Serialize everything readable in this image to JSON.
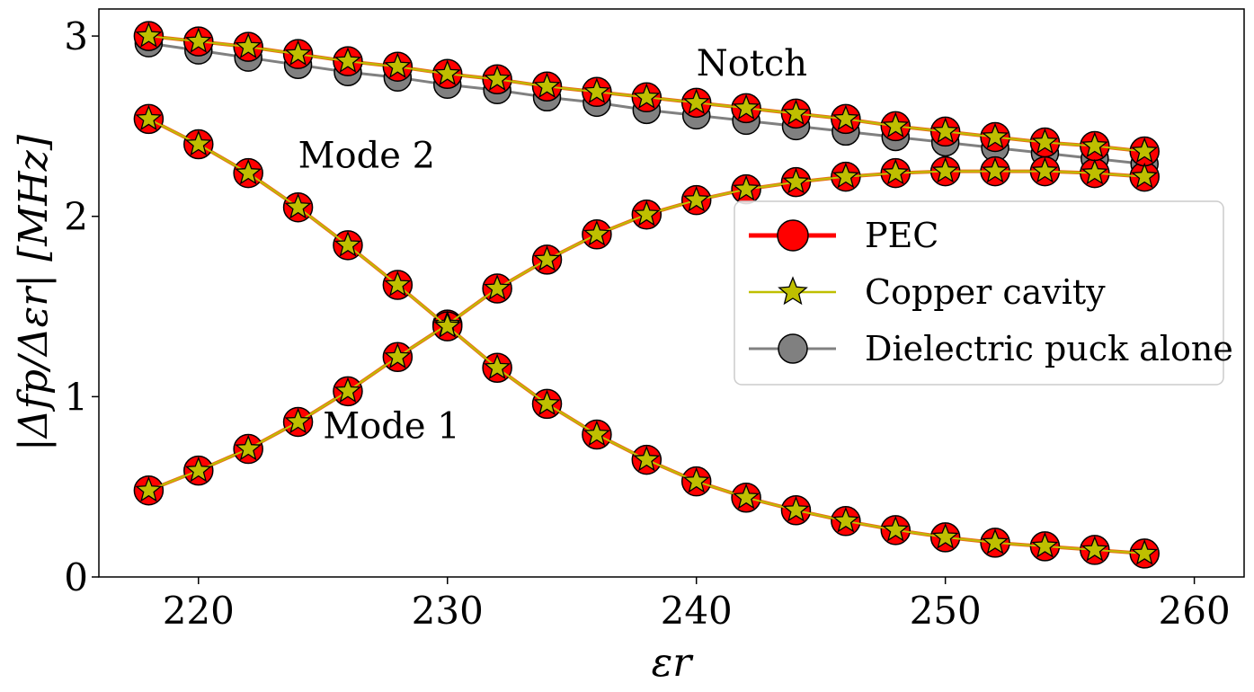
{
  "chart_data": {
    "type": "line",
    "title": "",
    "xlabel": "εr",
    "ylabel": "|Δfp/Δεr| [MHz]",
    "xlim": [
      216,
      262
    ],
    "ylim": [
      0,
      3.15
    ],
    "xticks": [
      220,
      230,
      240,
      250,
      260
    ],
    "yticks": [
      0,
      1,
      2,
      3
    ],
    "x": [
      218,
      220,
      222,
      224,
      226,
      228,
      230,
      232,
      234,
      236,
      238,
      240,
      242,
      244,
      246,
      248,
      250,
      252,
      254,
      256,
      258
    ],
    "series": [
      {
        "name": "PEC",
        "group": "Mode 1",
        "values": [
          0.48,
          0.59,
          0.71,
          0.86,
          1.03,
          1.22,
          1.4,
          1.6,
          1.76,
          1.9,
          2.01,
          2.09,
          2.15,
          2.19,
          2.22,
          2.24,
          2.25,
          2.25,
          2.25,
          2.24,
          2.22
        ]
      },
      {
        "name": "PEC",
        "group": "Mode 2",
        "values": [
          2.54,
          2.4,
          2.24,
          2.05,
          1.84,
          1.62,
          1.39,
          1.16,
          0.96,
          0.79,
          0.65,
          0.53,
          0.44,
          0.37,
          0.31,
          0.26,
          0.22,
          0.19,
          0.17,
          0.15,
          0.13
        ]
      },
      {
        "name": "PEC",
        "group": "Notch",
        "values": [
          3.0,
          2.97,
          2.94,
          2.9,
          2.86,
          2.83,
          2.79,
          2.76,
          2.72,
          2.69,
          2.66,
          2.63,
          2.6,
          2.57,
          2.54,
          2.5,
          2.47,
          2.44,
          2.41,
          2.39,
          2.36
        ]
      },
      {
        "name": "Copper cavity",
        "group": "Mode 1",
        "values": [
          0.48,
          0.59,
          0.71,
          0.86,
          1.03,
          1.22,
          1.4,
          1.6,
          1.76,
          1.9,
          2.01,
          2.09,
          2.15,
          2.19,
          2.22,
          2.24,
          2.25,
          2.25,
          2.25,
          2.24,
          2.22
        ]
      },
      {
        "name": "Copper cavity",
        "group": "Mode 2",
        "values": [
          2.54,
          2.4,
          2.24,
          2.05,
          1.84,
          1.62,
          1.39,
          1.16,
          0.96,
          0.79,
          0.65,
          0.53,
          0.44,
          0.37,
          0.31,
          0.26,
          0.22,
          0.19,
          0.17,
          0.15,
          0.13
        ]
      },
      {
        "name": "Copper cavity",
        "group": "Notch",
        "values": [
          3.0,
          2.97,
          2.94,
          2.9,
          2.86,
          2.83,
          2.79,
          2.76,
          2.72,
          2.69,
          2.66,
          2.63,
          2.6,
          2.57,
          2.54,
          2.5,
          2.47,
          2.44,
          2.41,
          2.39,
          2.36
        ]
      },
      {
        "name": "Dielectric puck alone",
        "group": "Notch",
        "values": [
          2.96,
          2.92,
          2.88,
          2.84,
          2.8,
          2.77,
          2.73,
          2.7,
          2.66,
          2.63,
          2.59,
          2.56,
          2.53,
          2.5,
          2.47,
          2.44,
          2.41,
          2.38,
          2.35,
          2.32,
          2.29
        ]
      }
    ],
    "annotations": [
      {
        "text": "Notch",
        "x": 240,
        "y": 2.78
      },
      {
        "text": "Mode 2",
        "x": 224,
        "y": 2.27
      },
      {
        "text": "Mode 1",
        "x": 225,
        "y": 0.77
      }
    ],
    "legend": {
      "position": "center-right",
      "entries": [
        {
          "label": "PEC",
          "color": "#ff0000",
          "marker": "circle"
        },
        {
          "label": "Copper cavity",
          "color": "#bfbf00",
          "marker": "star"
        },
        {
          "label": "Dielectric puck alone",
          "color": "#808080",
          "marker": "circle"
        }
      ]
    },
    "colors": {
      "pec": "#ff0000",
      "copper": "#bfbf00",
      "puck": "#808080",
      "pec_line": "#e8701c"
    }
  }
}
